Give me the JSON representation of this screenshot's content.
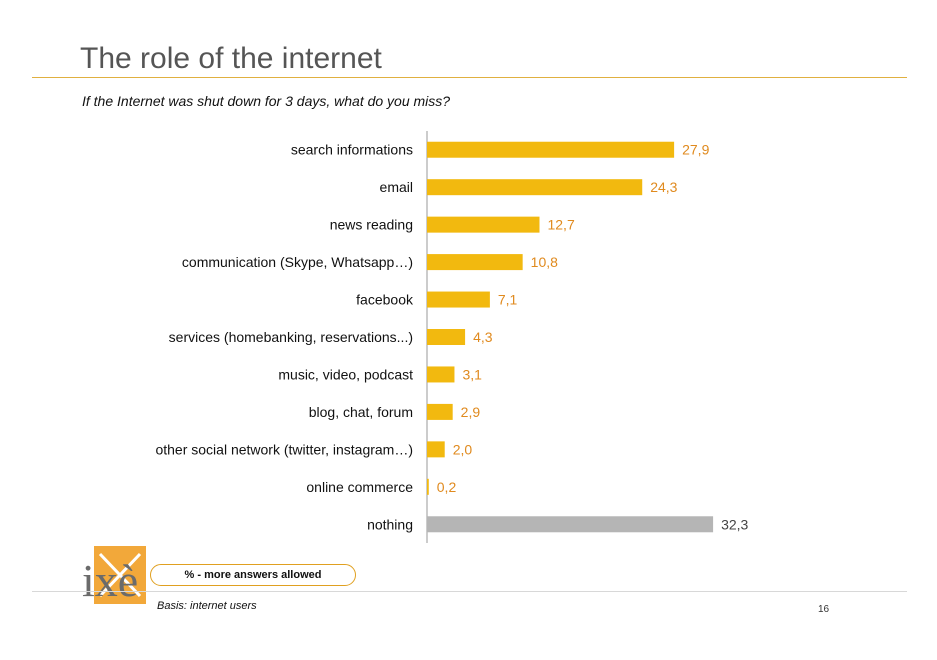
{
  "title": "The role of the internet",
  "subtitle": "If the Internet was shut down for 3 days, what do you miss?",
  "footer": {
    "note": "% - more answers allowed",
    "basis": "Basis: internet users",
    "page_number": "16",
    "logo_text": "ixè"
  },
  "colors": {
    "accent": "#f2b90f",
    "highlight_bar": "#b5b5b5",
    "value_text": "#e08a1e",
    "highlight_value_text": "#444444"
  },
  "chart_data": {
    "type": "bar",
    "orientation": "horizontal",
    "title": "",
    "xlabel": "",
    "ylabel": "",
    "xlim": [
      0,
      35
    ],
    "grid": false,
    "categories": [
      "search informations",
      "email",
      "news reading",
      "communication (Skype, Whatsapp…)",
      "facebook",
      "services (homebanking, reservations...)",
      "music, video, podcast",
      "blog, chat, forum",
      "other social network (twitter, instagram…)",
      "online commerce",
      "nothing"
    ],
    "values": [
      27.9,
      24.3,
      12.7,
      10.8,
      7.1,
      4.3,
      3.1,
      2.9,
      2.0,
      0.2,
      32.3
    ],
    "value_labels": [
      "27,9",
      "24,3",
      "12,7",
      "10,8",
      "7,1",
      "4,3",
      "3,1",
      "2,9",
      "2,0",
      "0,2",
      "32,3"
    ],
    "highlight_index": 10
  }
}
